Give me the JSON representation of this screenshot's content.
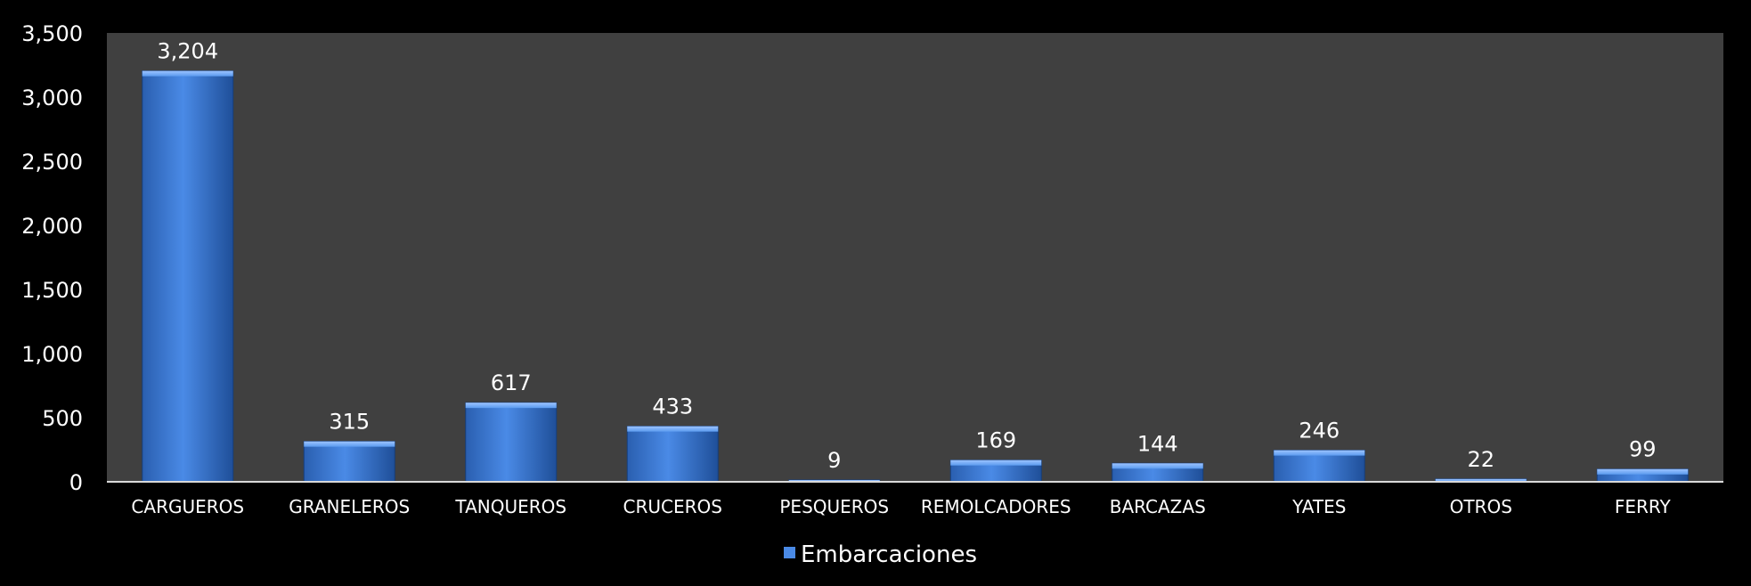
{
  "chart_data": {
    "type": "bar",
    "categories": [
      "CARGUEROS",
      "GRANELEROS",
      "TANQUEROS",
      "CRUCEROS",
      "PESQUEROS",
      "REMOLCADORES",
      "BARCAZAS",
      "YATES",
      "OTROS",
      "FERRY"
    ],
    "series": [
      {
        "name": "Embarcaciones",
        "values": [
          3204,
          315,
          617,
          433,
          9,
          169,
          144,
          246,
          22,
          99
        ]
      }
    ],
    "data_labels": [
      "3,204",
      "315",
      "617",
      "433",
      "9",
      "169",
      "144",
      "246",
      "22",
      "99"
    ],
    "yticks": [
      "0",
      "500",
      "1,000",
      "1,500",
      "2,000",
      "2,500",
      "3,000",
      "3,500"
    ],
    "ylim": [
      0,
      3500
    ],
    "grid": false,
    "legend_position": "bottom",
    "colors": {
      "bar": "#3a7bd5",
      "bar_light": "#5b9bef",
      "bar_dark": "#1f4f99",
      "plot_bg": "#404040",
      "page_bg": "#000000",
      "axis": "#d9d9d9"
    }
  }
}
